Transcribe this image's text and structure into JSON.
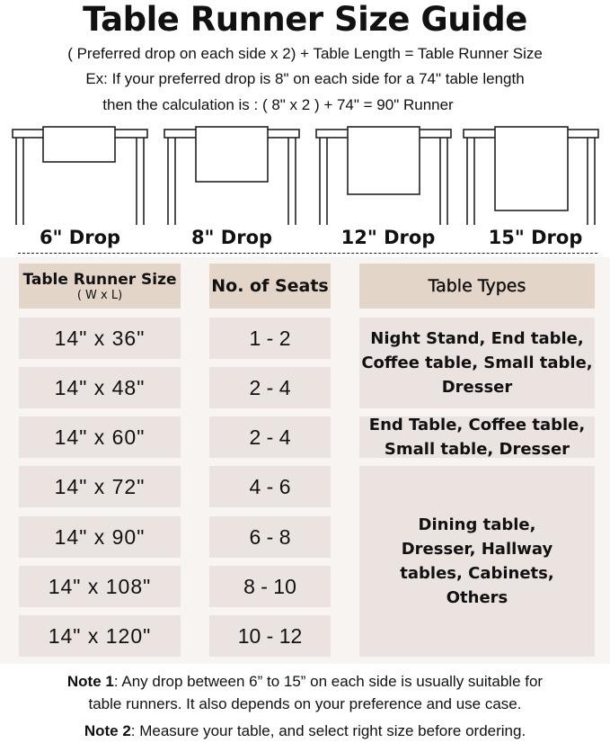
{
  "title": "Table Runner Size Guide",
  "formula": "( Preferred drop on each side x 2) + Table Length = Table Runner Size",
  "example_line1": "Ex: If your preferred drop is 8\" on each side for a 74\" table length",
  "example_line2": "then the calculation is : ( 8\" x 2 ) + 74\" = 90\" Runner",
  "drops": [
    "6\" Drop",
    "8\" Drop",
    "12\" Drop",
    "15\" Drop"
  ],
  "headers": {
    "size": "Table Runner Size",
    "size_sub": "( W x L)",
    "seats": "No. of Seats",
    "types": "Table Types"
  },
  "rows": [
    {
      "size": "14\" x 36\"",
      "seats": "1 - 2"
    },
    {
      "size": "14\" x 48\"",
      "seats": "2 - 4"
    },
    {
      "size": "14\" x 60\"",
      "seats": "2 - 4"
    },
    {
      "size": "14\" x 72\"",
      "seats": "4 - 6"
    },
    {
      "size": "14\" x 90\"",
      "seats": "6 - 8"
    },
    {
      "size": "14\" x 108\"",
      "seats": "8 - 10"
    },
    {
      "size": "14\" x 120\"",
      "seats": "10 - 12"
    }
  ],
  "types": [
    "Night Stand, End table, Coffee table, Small table, Dresser",
    "End Table, Coffee table, Small table, Dresser",
    "Dining table, Dresser, Hallway tables, Cabinets, Others"
  ],
  "notes": {
    "note1_label": "Note 1",
    "note1_text": ": Any drop between 6” to 15” on each side is usually suitable for",
    "note1_text2": "table runners. It also depends on your preference and use case.",
    "note2_label": "Note 2",
    "note2_text": ": Measure your table, and select right size before ordering."
  },
  "colors": {
    "header_cell": "#e3d6c8",
    "body_cell": "#ebe3df",
    "panel": "#f8f4f1"
  }
}
